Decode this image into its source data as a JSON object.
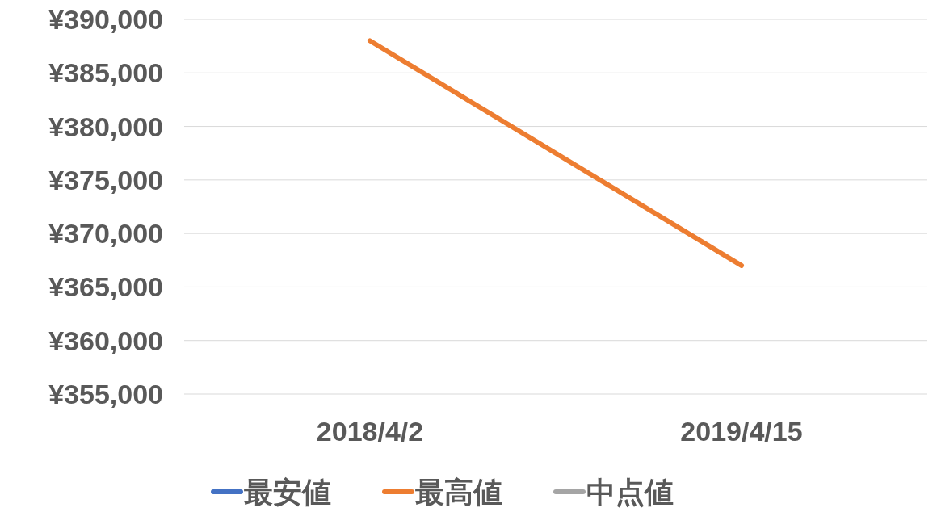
{
  "chart_data": {
    "type": "line",
    "categories": [
      "2018/4/2",
      "2019/4/15"
    ],
    "series": [
      {
        "name": "最安値",
        "color": "#4472c4",
        "values": [
          null,
          null
        ]
      },
      {
        "name": "最高値",
        "color": "#ed7d31",
        "values": [
          388000,
          367000
        ]
      },
      {
        "name": "中点値",
        "color": "#a5a5a5",
        "values": [
          null,
          null
        ]
      }
    ],
    "ylim": [
      355000,
      390000
    ],
    "yticks": [
      {
        "value": 355000,
        "label": "¥355,000"
      },
      {
        "value": 360000,
        "label": "¥360,000"
      },
      {
        "value": 365000,
        "label": "¥365,000"
      },
      {
        "value": 370000,
        "label": "¥370,000"
      },
      {
        "value": 375000,
        "label": "¥375,000"
      },
      {
        "value": 380000,
        "label": "¥380,000"
      },
      {
        "value": 385000,
        "label": "¥385,000"
      },
      {
        "value": 390000,
        "label": "¥390,000"
      }
    ],
    "grid": "y",
    "legend": "bottom",
    "marker": "none",
    "line_style": "solid"
  }
}
